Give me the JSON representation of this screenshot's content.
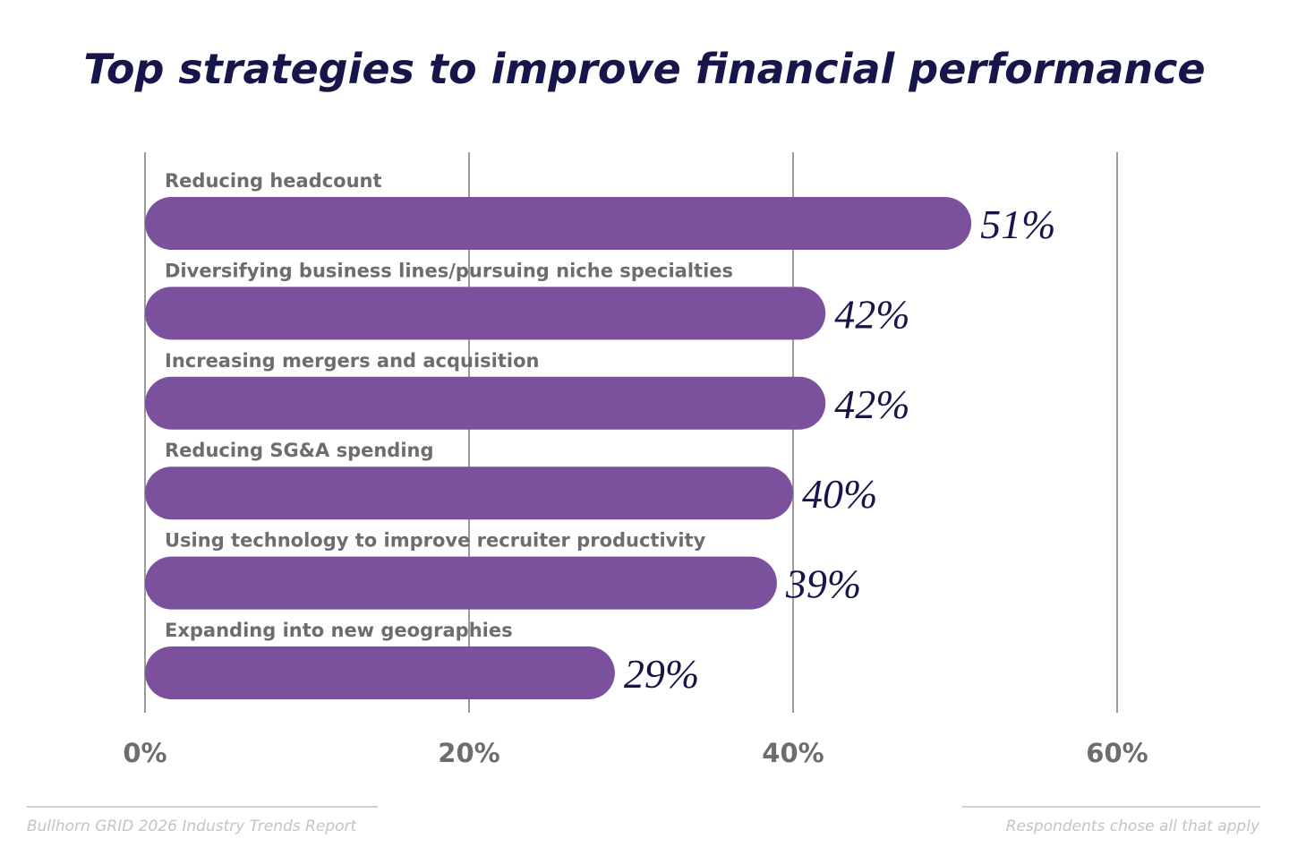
{
  "chart_data": {
    "type": "bar",
    "orientation": "horizontal",
    "title": "Top strategies to improve financial performance",
    "categories": [
      "Reducing headcount",
      "Diversifying business lines/pursuing niche specialties",
      "Increasing mergers and acquisition",
      "Reducing SG&A spending",
      "Using technology to improve recruiter productivity",
      "Expanding into new geographies"
    ],
    "values": [
      51,
      42,
      42,
      40,
      39,
      29
    ],
    "value_labels": [
      "51%",
      "42%",
      "42%",
      "40%",
      "39%",
      "29%"
    ],
    "xlim": [
      0,
      60
    ],
    "xticks": [
      0,
      20,
      40,
      60
    ],
    "xtick_labels": [
      "0%",
      "20%",
      "40%",
      "60%"
    ],
    "grid": true,
    "bar_color": "#7b519d",
    "footer_left": "Bullhorn GRID 2026 Industry Trends Report",
    "footer_right": "Respondents chose all that apply"
  }
}
